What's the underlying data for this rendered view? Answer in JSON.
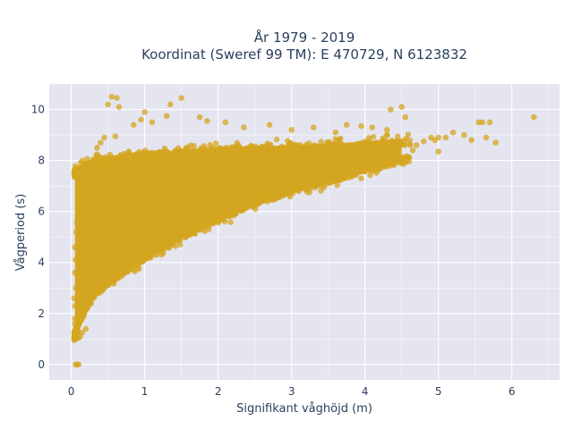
{
  "chart_data": {
    "type": "scatter",
    "title_lines": [
      "År 1979 - 2019",
      "Koordinat (Sweref 99 TM): E 470729, N 6123832"
    ],
    "xlabel": "Signifikant våghöjd (m)",
    "ylabel": "Vågperiod (s)",
    "xlim": [
      -0.3,
      6.65
    ],
    "ylim": [
      -0.6,
      11.0
    ],
    "xticks": [
      0,
      1,
      2,
      3,
      4,
      5,
      6
    ],
    "yticks": [
      0,
      2,
      4,
      6,
      8,
      10
    ],
    "marker_color": "#d4a520",
    "plot_background": "#e5e5f0",
    "grid": true,
    "density_envelope": {
      "x": [
        0.05,
        0.1,
        0.2,
        0.3,
        0.5,
        0.75,
        1.0,
        1.5,
        2.0,
        2.5,
        3.0,
        3.5,
        4.0,
        4.5
      ],
      "upper": [
        7.6,
        7.7,
        7.9,
        8.0,
        8.1,
        8.2,
        8.3,
        8.4,
        8.5,
        8.55,
        8.6,
        8.65,
        8.75,
        8.85
      ],
      "lower": [
        1.0,
        1.5,
        2.1,
        2.6,
        3.1,
        3.6,
        4.1,
        4.9,
        5.6,
        6.2,
        6.7,
        7.1,
        7.5,
        7.9
      ]
    },
    "points": [
      [
        0.06,
        0.0
      ],
      [
        0.08,
        0.0
      ],
      [
        0.1,
        0.0
      ],
      [
        0.55,
        10.5
      ],
      [
        0.62,
        10.45
      ],
      [
        0.5,
        10.2
      ],
      [
        0.65,
        10.1
      ],
      [
        1.0,
        9.9
      ],
      [
        1.3,
        9.75
      ],
      [
        1.5,
        10.45
      ],
      [
        1.35,
        10.2
      ],
      [
        1.1,
        9.5
      ],
      [
        0.95,
        9.6
      ],
      [
        0.85,
        9.4
      ],
      [
        1.75,
        9.7
      ],
      [
        1.85,
        9.55
      ],
      [
        2.1,
        9.5
      ],
      [
        2.35,
        9.3
      ],
      [
        2.7,
        9.4
      ],
      [
        3.0,
        9.2
      ],
      [
        3.3,
        9.3
      ],
      [
        3.6,
        9.1
      ],
      [
        3.75,
        9.4
      ],
      [
        3.95,
        9.35
      ],
      [
        4.1,
        9.3
      ],
      [
        4.35,
        10.0
      ],
      [
        4.5,
        10.1
      ],
      [
        4.55,
        9.7
      ],
      [
        4.3,
        9.2
      ],
      [
        4.7,
        8.6
      ],
      [
        4.9,
        8.9
      ],
      [
        5.0,
        8.9
      ],
      [
        5.2,
        9.1
      ],
      [
        5.35,
        9.0
      ],
      [
        5.45,
        8.8
      ],
      [
        5.55,
        9.5
      ],
      [
        5.6,
        9.5
      ],
      [
        5.7,
        9.5
      ],
      [
        5.65,
        8.9
      ],
      [
        5.78,
        8.7
      ],
      [
        6.3,
        9.7
      ],
      [
        5.0,
        8.35
      ],
      [
        4.65,
        8.4
      ],
      [
        4.8,
        8.75
      ],
      [
        4.95,
        8.8
      ],
      [
        5.1,
        8.9
      ],
      [
        0.45,
        8.9
      ],
      [
        0.6,
        8.95
      ],
      [
        0.35,
        8.5
      ],
      [
        0.4,
        8.7
      ],
      [
        0.2,
        7.75
      ],
      [
        0.25,
        7.6
      ],
      [
        0.08,
        1.2
      ],
      [
        0.1,
        1.05
      ],
      [
        0.12,
        1.1
      ],
      [
        0.15,
        1.25
      ],
      [
        0.2,
        1.4
      ],
      [
        0.05,
        1.6
      ],
      [
        0.05,
        1.8
      ],
      [
        0.05,
        2.3
      ],
      [
        0.04,
        2.6
      ],
      [
        0.06,
        3.0
      ],
      [
        0.05,
        3.6
      ],
      [
        0.06,
        4.1
      ],
      [
        0.05,
        4.6
      ],
      [
        0.07,
        5.2
      ],
      [
        0.08,
        5.6
      ]
    ]
  }
}
